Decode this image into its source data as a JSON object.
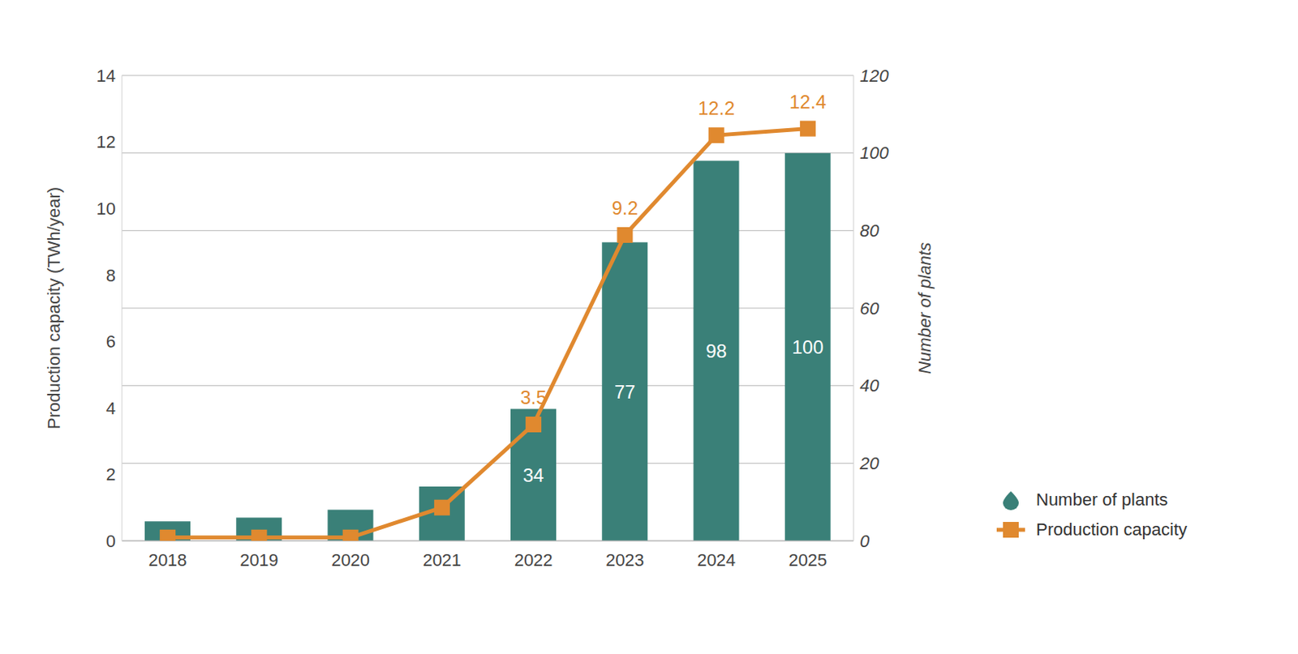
{
  "chart_data": {
    "type": "bar",
    "categories": [
      "2018",
      "2019",
      "2020",
      "2021",
      "2022",
      "2023",
      "2024",
      "2025"
    ],
    "series": [
      {
        "name": "Number of plants",
        "type": "bar",
        "color": "#3a8078",
        "axis": "y2",
        "values": [
          5,
          6,
          8,
          14,
          34,
          77,
          98,
          100
        ],
        "value_labels": [
          null,
          null,
          null,
          null,
          "34",
          "77",
          "98",
          "100"
        ]
      },
      {
        "name": "Production capacity",
        "type": "line",
        "color": "#e0892f",
        "marker": "square",
        "values": [
          0.1,
          0.1,
          0.1,
          1.0,
          3.5,
          9.2,
          12.2,
          12.4
        ],
        "value_labels": [
          null,
          null,
          null,
          null,
          "3.5",
          "9.2",
          "12.2",
          "12.4"
        ]
      }
    ],
    "y_label": "Production capacity (TWh/year)",
    "y2_label": "Number of plants",
    "ylim": [
      0,
      14
    ],
    "yticks": [
      0,
      2,
      4,
      6,
      8,
      10,
      12,
      14
    ],
    "y2lim": [
      0,
      120
    ],
    "y2ticks": [
      0,
      20,
      40,
      60,
      80,
      100,
      120
    ],
    "grid": true,
    "legend": "lower right",
    "data_labels": true
  }
}
